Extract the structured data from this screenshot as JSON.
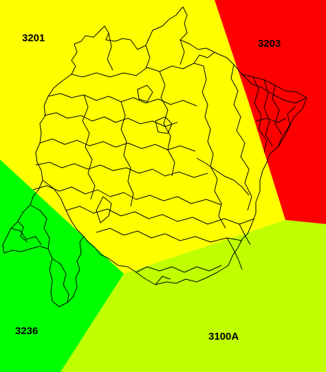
{
  "map": {
    "colors": {
      "zone_3201": "#ffff00",
      "zone_3203": "#ff0000",
      "zone_3236": "#00ff00",
      "zone_3100A": "#bfff00",
      "lines": "#000000"
    },
    "zones": [
      {
        "id": "3201",
        "label": "3201"
      },
      {
        "id": "3203",
        "label": "3203"
      },
      {
        "id": "3236",
        "label": "3236"
      },
      {
        "id": "3100A",
        "label": "3100A"
      }
    ]
  }
}
